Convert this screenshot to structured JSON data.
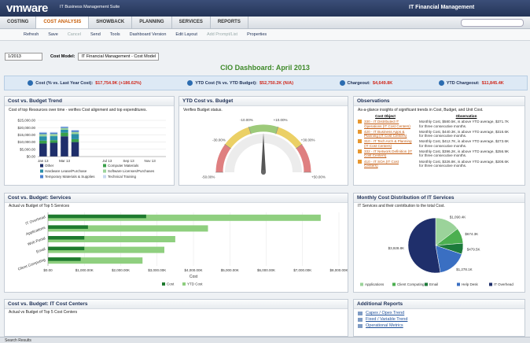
{
  "header": {
    "logo": "vmware",
    "suite": "IT Business Management Suite",
    "module": "IT Financial Management"
  },
  "nav": {
    "items": [
      "COSTING",
      "COST ANALYSIS",
      "SHOWBACK",
      "PLANNING",
      "SERVICES",
      "REPORTS"
    ],
    "active": 1
  },
  "toolbar": {
    "items": [
      "Refresh",
      "Save",
      "Cancel",
      "Send",
      "Tools",
      "Dashboard Version",
      "Edit Layout",
      "Add Prompt/List",
      "Properties"
    ],
    "disabled": [
      2,
      7
    ]
  },
  "filters": {
    "period": "1/2013",
    "cost_model_label": "Cost Model:",
    "cost_model": "IT Financial Management - Cost Model"
  },
  "title": "CIO Dashboard: April 2013",
  "kpis": [
    {
      "label": "Cost (% vs. Last Year Cost):",
      "value": "$17,754.9K (+186.62%)"
    },
    {
      "label": "YTD Cost (% vs. YTD Budget):",
      "value": "$52,750.2K (N/A)"
    },
    {
      "label": "Chargeout:",
      "value": "$4,649.8K"
    },
    {
      "label": "YTD Chargeout:",
      "value": "$11,845.4K"
    }
  ],
  "chart_data": [
    {
      "type": "stacked-bar",
      "title": "Cost vs. Budget Trend",
      "subtitle": "Cost of top Resources over time - verifies Cost alignment and top expenditures.",
      "categories": [
        "Jan 13",
        null,
        "Mar 13",
        null,
        null,
        null,
        "Jul 13",
        null,
        "Sep 13",
        null,
        "Nov 13",
        null
      ],
      "series": [
        {
          "name": "Other",
          "color": "#1f2f6b",
          "values": [
            9000,
            9500,
            14000,
            10000,
            null,
            null,
            null,
            null,
            null,
            null,
            null,
            null
          ]
        },
        {
          "name": "Computer Materials",
          "color": "#3aa04a",
          "values": [
            2000,
            1800,
            2500,
            2000,
            null,
            null,
            null,
            null,
            null,
            null,
            null,
            null
          ]
        },
        {
          "name": "Hardware Lease/Purchase",
          "color": "#2a8fa8",
          "values": [
            3000,
            2800,
            2000,
            3500,
            null,
            null,
            null,
            null,
            null,
            null,
            null,
            null
          ]
        },
        {
          "name": "Software Licenses/Purchases",
          "color": "#9bd39a",
          "values": [
            1500,
            1500,
            1200,
            1500,
            null,
            null,
            null,
            null,
            null,
            null,
            null,
            null
          ]
        },
        {
          "name": "Temporary Materials & Supplies",
          "color": "#4a7fd0",
          "values": [
            1000,
            900,
            800,
            1000,
            null,
            null,
            null,
            null,
            null,
            null,
            null,
            null
          ]
        },
        {
          "name": "Technical Training",
          "color": "#c8d8f0",
          "values": [
            500,
            500,
            300,
            500,
            null,
            null,
            null,
            null,
            null,
            null,
            null,
            null
          ]
        }
      ],
      "ylim": [
        0,
        25000
      ],
      "yticks": [
        {
          "value": 0,
          "label": "$0.00"
        },
        {
          "value": 5000,
          "label": "$5,000.00"
        },
        {
          "value": 10000,
          "label": "$10,000.00"
        },
        {
          "value": 15000,
          "label": "$15,000.00"
        },
        {
          "value": 20000,
          "label": "$20,000.00"
        },
        {
          "value": 25000,
          "label": "$25,000.00"
        }
      ],
      "grid": true
    },
    {
      "type": "gauge",
      "title": "YTD Cost vs. Budget",
      "subtitle": "Verifies Budget status.",
      "ylim": [
        -50,
        50
      ],
      "yticks": [
        {
          "value": -50,
          "label": "-50.00%"
        },
        {
          "value": -30,
          "label": "-30.00%"
        },
        {
          "value": -10,
          "label": "-10.00%"
        },
        {
          "value": 10,
          "label": "+10.00%"
        },
        {
          "value": 30,
          "label": "+30.00%"
        },
        {
          "value": 50,
          "label": "+50.00%"
        }
      ],
      "bands": [
        {
          "from": -50,
          "to": -30,
          "color": "#d9686a"
        },
        {
          "from": -30,
          "to": -10,
          "color": "#e8c84a"
        },
        {
          "from": -10,
          "to": 10,
          "color": "#8cc163"
        },
        {
          "from": 10,
          "to": 30,
          "color": "#e8c84a"
        },
        {
          "from": 30,
          "to": 50,
          "color": "#d9686a"
        }
      ],
      "value": 0
    },
    {
      "type": "hbar",
      "title": "Cost vs. Budget: Services",
      "subtitle": "Actual vs Budget of Top 5 Services",
      "categories": [
        "IT Overhead",
        "Applications",
        "Web Portal",
        "Email",
        "Client Computing"
      ],
      "series": [
        {
          "name": "Cost",
          "color": "#1e7a2e",
          "values": [
            2700,
            1100,
            1000,
            1000,
            900
          ]
        },
        {
          "name": "YTD Cost",
          "color": "#8fcf7f",
          "values": [
            7500,
            4400,
            3500,
            3200,
            2600
          ]
        }
      ],
      "xlabel": "Cost",
      "xlim": [
        0,
        8000
      ],
      "xticks": [
        {
          "value": 0,
          "label": "$0.00"
        },
        {
          "value": 1000,
          "label": "$1,000.00K"
        },
        {
          "value": 2000,
          "label": "$2,000.00K"
        },
        {
          "value": 3000,
          "label": "$3,000.00K"
        },
        {
          "value": 4000,
          "label": "$4,000.00K"
        },
        {
          "value": 5000,
          "label": "$5,000.00K"
        },
        {
          "value": 6000,
          "label": "$6,000.00K"
        },
        {
          "value": 7000,
          "label": "$7,000.00K"
        },
        {
          "value": 8000,
          "label": "$8,000.00K"
        }
      ]
    },
    {
      "type": "pie",
      "title": "Monthly Cost Distribution of IT Services",
      "subtitle": "IT Services and their contribution to the total Cost.",
      "categories": [
        "Applications",
        "Client Computing",
        "Email",
        "Help Desk",
        "IT Overhead"
      ],
      "colors": [
        "#9bd39a",
        "#4caf50",
        "#1c7a3b",
        "#3a6fc2",
        "#1f2f6b"
      ],
      "values": [
        1090.4,
        674.3,
        479.5,
        1278.1,
        3928.8
      ],
      "value_labels": [
        "$1,090.4K",
        "$674.3K",
        "$479.5K",
        "$1,278.1K",
        "$3,928.8K"
      ]
    }
  ],
  "observations": {
    "title": "Observations",
    "subtitle": "As-a-glance insights of significant trends in Cost, Budget, and Unit Cost.",
    "columns": [
      "Cost Object",
      "Observation"
    ],
    "rows": [
      [
        "330 - IT Distributed IT Operations (IT Cost Centers)",
        "Monthly Cost, $580.5K, is above YTD average, $371.7K for three consecutive months."
      ],
      [
        "420 - IT Business Apps & Planning (IT Cost Centers)",
        "Monthly Cost, $440.3K, is above YTD average, $316.6K for three consecutive months."
      ],
      [
        "310 - IT Tech Arch & Planning (IT Cost Centers)",
        "Monthly Cost, $412.7K, is above YTD average, $273.6K for three consecutive months."
      ],
      [
        "332 - IT Network Definition (IT Cost Centers)",
        "Monthly Cost, $396.2K, is above YTD average, $256.9K for three consecutive months."
      ],
      [
        "410 - IT SOA (IT Cost Centers)",
        "Monthly Cost, $326.8K, is above YTD average, $208.6K for three consecutive months."
      ]
    ]
  },
  "cost_centers": {
    "title": "Cost vs. Budget: IT Cost Centers",
    "subtitle": "Actual vs Budget of Top 5 Cost Centers"
  },
  "reports": {
    "title": "Additional Reports",
    "items": [
      "Capex / Opex Trend",
      "Fixed / Variable Trend",
      "Operational Metrics"
    ]
  },
  "footer": "Search Results"
}
